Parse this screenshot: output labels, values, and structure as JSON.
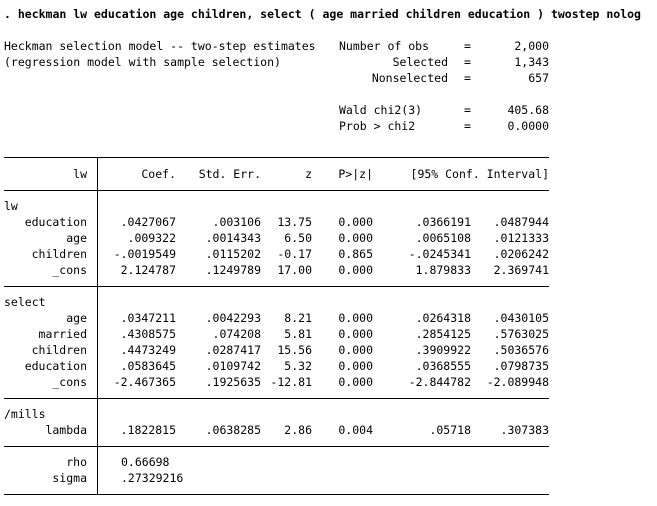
{
  "command": ". heckman lw education age children, select ( age married children education ) twostep nolog",
  "title_line1": "Heckman selection model -- two-step estimates",
  "title_line2": "(regression model with sample selection)",
  "header_stats": [
    {
      "label": "Number of obs",
      "eq": "=",
      "value": "2,000"
    },
    {
      "label": "Selected",
      "eq": "=",
      "value": "1,343"
    },
    {
      "label": "Nonselected",
      "eq": "=",
      "value": "657"
    },
    {
      "label": "Wald chi2(3)",
      "eq": "=",
      "value": "405.68"
    },
    {
      "label": "Prob > chi2",
      "eq": "=",
      "value": "0.0000"
    }
  ],
  "columns": {
    "depvar": "lw",
    "coef": "Coef.",
    "se": "Std. Err.",
    "z": "z",
    "p": "P>|z|",
    "ci": "[95% Conf. Interval]"
  },
  "equations": [
    {
      "name": "lw",
      "rows": [
        {
          "var": "education",
          "coef": ".0427067",
          "se": ".003106",
          "z": "13.75",
          "p": "0.000",
          "lo": ".0366191",
          "hi": ".0487944"
        },
        {
          "var": "age",
          "coef": ".009322",
          "se": ".0014343",
          "z": "6.50",
          "p": "0.000",
          "lo": ".0065108",
          "hi": ".0121333"
        },
        {
          "var": "children",
          "coef": "-.0019549",
          "se": ".0115202",
          "z": "-0.17",
          "p": "0.865",
          "lo": "-.0245341",
          "hi": ".0206242"
        },
        {
          "var": "_cons",
          "coef": "2.124787",
          "se": ".1249789",
          "z": "17.00",
          "p": "0.000",
          "lo": "1.879833",
          "hi": "2.369741"
        }
      ]
    },
    {
      "name": "select",
      "rows": [
        {
          "var": "age",
          "coef": ".0347211",
          "se": ".0042293",
          "z": "8.21",
          "p": "0.000",
          "lo": ".0264318",
          "hi": ".0430105"
        },
        {
          "var": "married",
          "coef": ".4308575",
          "se": ".074208",
          "z": "5.81",
          "p": "0.000",
          "lo": ".2854125",
          "hi": ".5763025"
        },
        {
          "var": "children",
          "coef": ".4473249",
          "se": ".0287417",
          "z": "15.56",
          "p": "0.000",
          "lo": ".3909922",
          "hi": ".5036576"
        },
        {
          "var": "education",
          "coef": ".0583645",
          "se": ".0109742",
          "z": "5.32",
          "p": "0.000",
          "lo": ".0368555",
          "hi": ".0798735"
        },
        {
          "var": "_cons",
          "coef": "-2.467365",
          "se": ".1925635",
          "z": "-12.81",
          "p": "0.000",
          "lo": "-2.844782",
          "hi": "-2.089948"
        }
      ]
    },
    {
      "name": "/mills",
      "rows": [
        {
          "var": "lambda",
          "coef": ".1822815",
          "se": ".0638285",
          "z": "2.86",
          "p": "0.004",
          "lo": ".05718",
          "hi": ".307383"
        }
      ]
    }
  ],
  "ancillary": [
    {
      "var": "rho",
      "coef": "0.66698"
    },
    {
      "var": "sigma",
      "coef": ".27329216"
    }
  ]
}
